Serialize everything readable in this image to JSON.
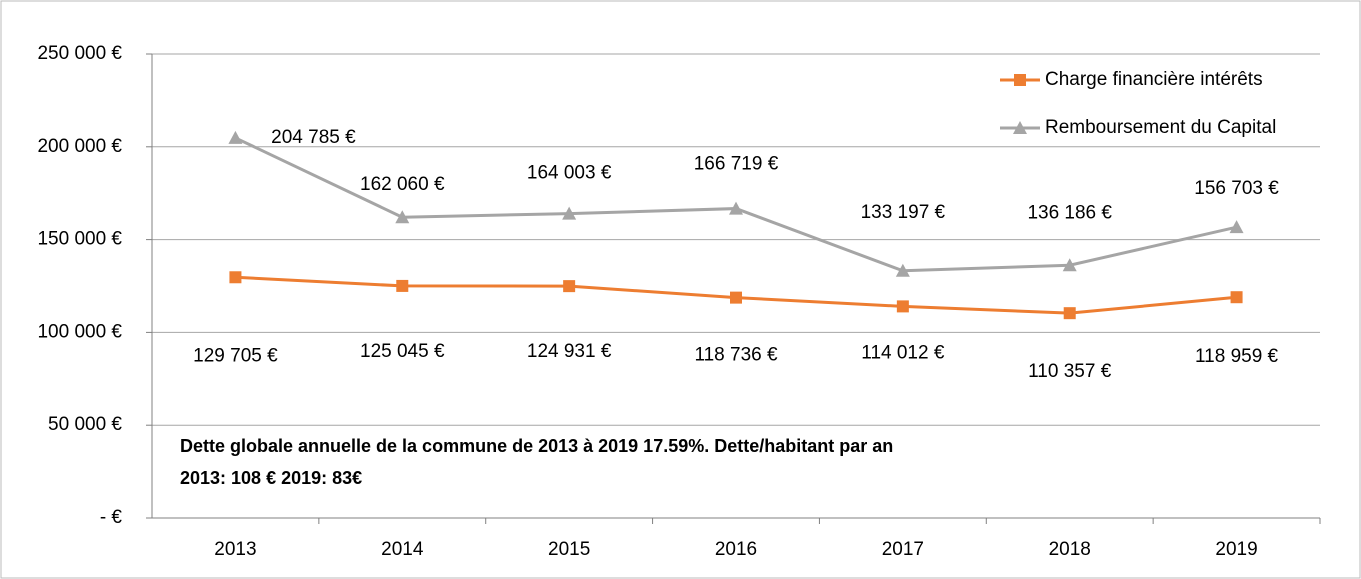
{
  "chart_data": {
    "type": "line",
    "categories": [
      "2013",
      "2014",
      "2015",
      "2016",
      "2017",
      "2018",
      "2019"
    ],
    "series": [
      {
        "name": "Charge financière intérêts",
        "color": "#ed7d31",
        "marker": "square",
        "values": [
          129705,
          125045,
          124931,
          118736,
          114012,
          110357,
          118959
        ],
        "value_labels": [
          "129 705 €",
          "125 045 €",
          "124 931 €",
          "118 736 €",
          "114 012 €",
          "110 357 €",
          "118 959 €"
        ]
      },
      {
        "name": "Remboursement du Capital",
        "color": "#a5a5a5",
        "marker": "triangle",
        "values": [
          204785,
          162060,
          164003,
          166719,
          133197,
          136186,
          156703
        ],
        "value_labels": [
          "204 785 €",
          "162 060 €",
          "164 003 €",
          "166 719 €",
          "133 197 €",
          "136 186 €",
          "156 703 €"
        ]
      }
    ],
    "ylim": [
      0,
      250000
    ],
    "yticks": [
      {
        "value": 0,
        "label": "-   €"
      },
      {
        "value": 50000,
        "label": "50 000 €"
      },
      {
        "value": 100000,
        "label": "100 000 €"
      },
      {
        "value": 150000,
        "label": "150 000 €"
      },
      {
        "value": 200000,
        "label": "200 000 €"
      },
      {
        "value": 250000,
        "label": "250 000 €"
      }
    ],
    "grid": true,
    "legend": "top-right",
    "annotation": [
      "Dette  globale annuelle de la commune de 2013 à 2019  17.59%. Dette/habitant par an",
      "2013: 108 € 2019:  83€"
    ]
  }
}
